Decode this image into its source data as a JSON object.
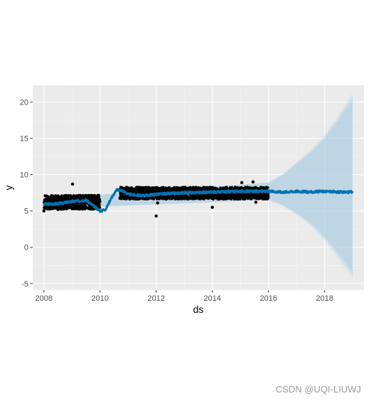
{
  "watermark": "CSDN @UQI-LIUWJ",
  "chart_data": {
    "type": "scatter",
    "title": "",
    "xlabel": "ds",
    "ylabel": "y",
    "xlim": [
      2007.6,
      2019.4
    ],
    "ylim": [
      -5.9,
      22.3
    ],
    "x_ticks": [
      2008,
      2010,
      2012,
      2014,
      2016,
      2018
    ],
    "y_ticks": [
      -5,
      0,
      5,
      10,
      15,
      20
    ],
    "grid": true,
    "background": "#ebebeb",
    "colors": {
      "points": "#000000",
      "forecast": "#0072b2",
      "interval": "#a6cbe0"
    },
    "series": [
      {
        "type": "scatter",
        "points": [
          [
            2008.0,
            5.0
          ],
          [
            2008.05,
            6.1
          ],
          [
            2008.1,
            5.6
          ],
          [
            2008.15,
            5.8
          ],
          [
            2008.2,
            6.0
          ],
          [
            2008.25,
            5.5
          ],
          [
            2008.3,
            6.3
          ],
          [
            2008.35,
            5.4
          ],
          [
            2008.4,
            6.6
          ],
          [
            2008.45,
            5.9
          ],
          [
            2008.5,
            5.2
          ],
          [
            2008.55,
            6.7
          ],
          [
            2008.6,
            5.5
          ],
          [
            2008.65,
            6.2
          ],
          [
            2008.7,
            5.7
          ],
          [
            2008.75,
            6.4
          ],
          [
            2008.8,
            5.3
          ],
          [
            2008.85,
            6.0
          ],
          [
            2008.9,
            6.3
          ],
          [
            2008.95,
            5.8
          ],
          [
            2009.0,
            6.5
          ],
          [
            2009.02,
            8.7
          ],
          [
            2009.05,
            6.1
          ],
          [
            2009.1,
            7.0
          ],
          [
            2009.15,
            5.9
          ],
          [
            2009.2,
            6.6
          ],
          [
            2009.25,
            6.2
          ],
          [
            2009.3,
            6.9
          ],
          [
            2009.35,
            6.0
          ],
          [
            2009.4,
            6.7
          ],
          [
            2009.45,
            6.4
          ],
          [
            2009.5,
            6.1
          ],
          [
            2009.55,
            6.8
          ],
          [
            2009.6,
            6.3
          ],
          [
            2009.65,
            7.0
          ],
          [
            2009.7,
            6.5
          ],
          [
            2009.75,
            6.2
          ],
          [
            2009.8,
            6.8
          ],
          [
            2009.85,
            6.4
          ],
          [
            2009.9,
            6.9
          ],
          [
            2009.95,
            6.6
          ],
          [
            2010.7,
            7.9
          ],
          [
            2010.75,
            7.7
          ],
          [
            2010.8,
            8.0
          ],
          [
            2010.85,
            7.8
          ],
          [
            2010.9,
            8.0
          ],
          [
            2010.95,
            7.6
          ],
          [
            2011.0,
            7.9
          ],
          [
            2011.1,
            7.2
          ],
          [
            2011.2,
            6.9
          ],
          [
            2011.3,
            7.4
          ],
          [
            2011.4,
            7.0
          ],
          [
            2011.5,
            7.5
          ],
          [
            2011.6,
            7.1
          ],
          [
            2011.7,
            7.3
          ],
          [
            2011.8,
            6.9
          ],
          [
            2011.9,
            7.5
          ],
          [
            2012.0,
            7.2
          ],
          [
            2012.0,
            4.3
          ],
          [
            2012.05,
            6.1
          ],
          [
            2012.1,
            7.4
          ],
          [
            2012.2,
            7.0
          ],
          [
            2012.3,
            7.6
          ],
          [
            2012.4,
            7.2
          ],
          [
            2012.5,
            7.5
          ],
          [
            2012.6,
            7.1
          ],
          [
            2012.7,
            7.7
          ],
          [
            2012.8,
            7.3
          ],
          [
            2012.9,
            7.8
          ],
          [
            2013.0,
            7.4
          ],
          [
            2013.1,
            7.9
          ],
          [
            2013.2,
            7.5
          ],
          [
            2013.3,
            7.2
          ],
          [
            2013.4,
            7.8
          ],
          [
            2013.5,
            7.4
          ],
          [
            2013.6,
            7.9
          ],
          [
            2013.7,
            7.5
          ],
          [
            2013.8,
            7.2
          ],
          [
            2013.9,
            7.8
          ],
          [
            2014.0,
            7.5
          ],
          [
            2014.0,
            5.5
          ],
          [
            2014.1,
            7.9
          ],
          [
            2014.2,
            7.6
          ],
          [
            2014.3,
            8.0
          ],
          [
            2014.4,
            7.4
          ],
          [
            2014.5,
            7.9
          ],
          [
            2014.6,
            7.6
          ],
          [
            2014.7,
            8.2
          ],
          [
            2014.8,
            7.5
          ],
          [
            2014.9,
            7.9
          ],
          [
            2015.0,
            7.7
          ],
          [
            2015.05,
            8.9
          ],
          [
            2015.1,
            7.5
          ],
          [
            2015.2,
            8.0
          ],
          [
            2015.3,
            7.6
          ],
          [
            2015.4,
            8.1
          ],
          [
            2015.45,
            9.0
          ],
          [
            2015.5,
            7.7
          ],
          [
            2015.55,
            6.2
          ],
          [
            2015.6,
            8.1
          ],
          [
            2015.7,
            7.6
          ],
          [
            2015.8,
            8.0
          ],
          [
            2015.9,
            7.6
          ],
          [
            2015.95,
            8.2
          ]
        ],
        "band_ranges": [
          [
            2008.0,
            2010.0,
            5.2,
            7.2
          ],
          [
            2010.7,
            2016.0,
            6.6,
            8.3
          ]
        ]
      },
      {
        "type": "line",
        "x": [
          2008.0,
          2008.5,
          2009.0,
          2009.5,
          2010.0,
          2010.2,
          2010.4,
          2010.6,
          2010.8,
          2011.0,
          2011.5,
          2012.0,
          2013.0,
          2014.0,
          2015.0,
          2016.0,
          2016.5,
          2017.0,
          2017.5,
          2018.0,
          2018.5,
          2019.0
        ],
        "y": [
          5.9,
          6.0,
          6.3,
          6.5,
          5.0,
          5.2,
          6.8,
          7.9,
          7.8,
          7.3,
          7.1,
          7.3,
          7.5,
          7.6,
          7.7,
          7.7,
          7.6,
          7.7,
          7.6,
          7.7,
          7.6,
          7.6
        ]
      },
      {
        "type": "area",
        "x": [
          2008.0,
          2016.0,
          2016.5,
          2017.0,
          2017.5,
          2018.0,
          2018.5,
          2019.0
        ],
        "lower": [
          5.3,
          6.5,
          5.8,
          4.6,
          3.2,
          1.2,
          -1.2,
          -3.8
        ],
        "upper": [
          6.7,
          8.9,
          10.0,
          11.6,
          13.2,
          15.2,
          17.9,
          20.8
        ]
      }
    ]
  }
}
